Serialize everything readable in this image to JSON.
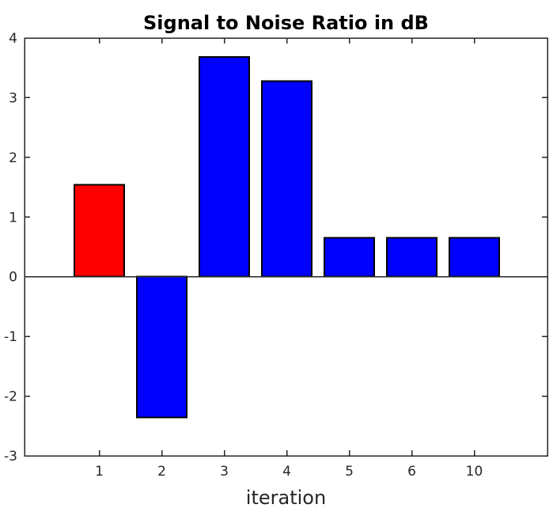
{
  "chart_data": {
    "type": "bar",
    "title": "Signal to Noise Ratio in dB",
    "xlabel": "iteration",
    "ylabel": "",
    "categories": [
      "1",
      "2",
      "3",
      "4",
      "5",
      "6",
      "10"
    ],
    "values": [
      1.54,
      -2.36,
      3.68,
      3.28,
      0.65,
      0.65,
      0.65
    ],
    "bar_colors": [
      "#ff0000",
      "#0000ff",
      "#0000ff",
      "#0000ff",
      "#0000ff",
      "#0000ff",
      "#0000ff"
    ],
    "bar_edge_color": "#000000",
    "ylim": [
      -3,
      4
    ],
    "yticks": [
      -3,
      -2,
      -1,
      0,
      1,
      2,
      3,
      4
    ],
    "baseline": 0,
    "grid": false,
    "legend_position": "none",
    "axis_color": "#262626",
    "background_color": "#ffffff"
  }
}
